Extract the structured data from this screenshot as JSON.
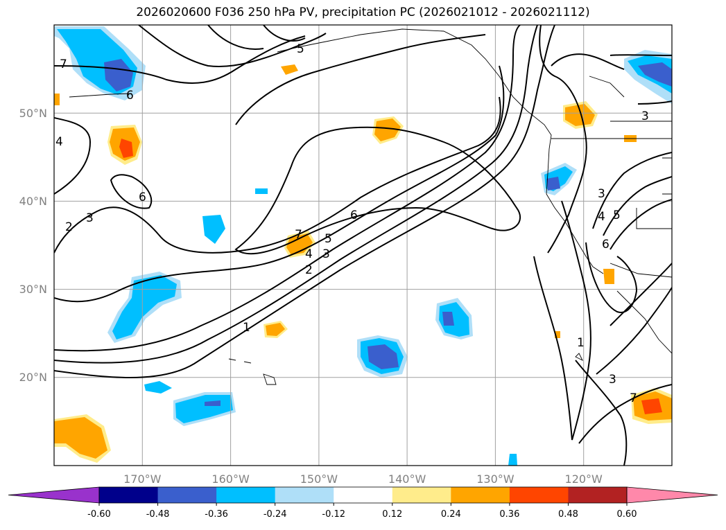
{
  "title": "2026020600 F036 250 hPa PV, precipitation PC (2026021012 - 2026021112)",
  "map": {
    "projection": "cylindrical",
    "lon_range": [
      -180,
      -110
    ],
    "lat_range": [
      10,
      60
    ],
    "gridlines": true,
    "lat_labels": [
      "20°N",
      "30°N",
      "40°N",
      "50°N"
    ],
    "lon_labels": [
      "170°W",
      "160°W",
      "150°W",
      "140°W",
      "130°W",
      "120°W"
    ]
  },
  "colorbar": {
    "ticks": [
      "-0.60",
      "-0.48",
      "-0.36",
      "-0.24",
      "-0.12",
      "0.12",
      "0.24",
      "0.36",
      "0.48",
      "0.60"
    ],
    "colors": [
      "#9932cc",
      "#00008b",
      "#3a5fcd",
      "#00bfff",
      "#afdff8",
      "#ffffff",
      "#ffec8b",
      "#ffa500",
      "#ff4500",
      "#b22222",
      "#ff88aa"
    ],
    "extend": "both"
  },
  "contour_labels": [
    "1",
    "2",
    "3",
    "4",
    "5",
    "6",
    "7"
  ]
}
